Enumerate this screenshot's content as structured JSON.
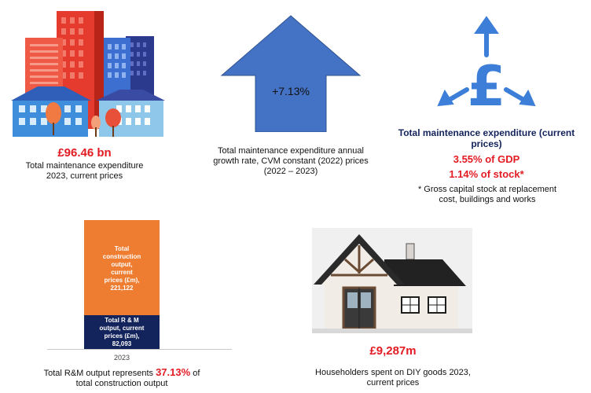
{
  "panel1": {
    "icon": "city-buildings-icon",
    "amount": "£96.46 bn",
    "caption_line1": "Total maintenance expenditure",
    "caption_line2": "2023, current prices"
  },
  "panel2": {
    "icon": "up-arrow-icon",
    "arrow_value": "+7.13%",
    "caption_line1": "Total maintenance expenditure annual",
    "caption_line2": "growth rate, CVM constant (2022) prices",
    "caption_line3": "(2022 – 2023)"
  },
  "panel3": {
    "icon": "pound-sign-arrows-icon",
    "title_line1": "Total maintenance expenditure (current",
    "title_line2": "prices)",
    "gdp_share": "3.55% of GDP",
    "stock_share": "1.14% of stock*",
    "footnote_line1": "* Gross capital stock at replacement",
    "footnote_line2": "cost, buildings and works"
  },
  "panel4": {
    "stack_top_label_lines": [
      "Total",
      "construction",
      "output,",
      "current",
      "prices (£m),",
      "221,122"
    ],
    "stack_bottom_label_lines": [
      "Total R & M",
      "output, current",
      "prices (£m),",
      "82,093"
    ],
    "year": "2023",
    "caption_prefix": "Total R&M output represents ",
    "caption_highlight": "37.13%",
    "caption_suffix": " of",
    "caption_line2": "total construction output"
  },
  "panel5": {
    "icon": "house-icon",
    "amount": "£9,287m",
    "caption_line1": "Householders spent on DIY goods 2023,",
    "caption_line2": "current prices"
  },
  "chart_data": {
    "type": "bar",
    "categories": [
      "2023"
    ],
    "series": [
      {
        "name": "Total R & M output, current prices (£m)",
        "values": [
          82093
        ]
      },
      {
        "name": "Total construction output, current prices (£m)",
        "values": [
          221122
        ]
      }
    ],
    "colors": {
      "rm": "#13235b",
      "construction": "#ef7d31"
    }
  },
  "colors": {
    "accent_red": "#e31b23",
    "navy": "#13235b",
    "orange": "#ef7d31",
    "arrow_blue": "#4472c4",
    "icon_blue": "#3d7fd8"
  }
}
